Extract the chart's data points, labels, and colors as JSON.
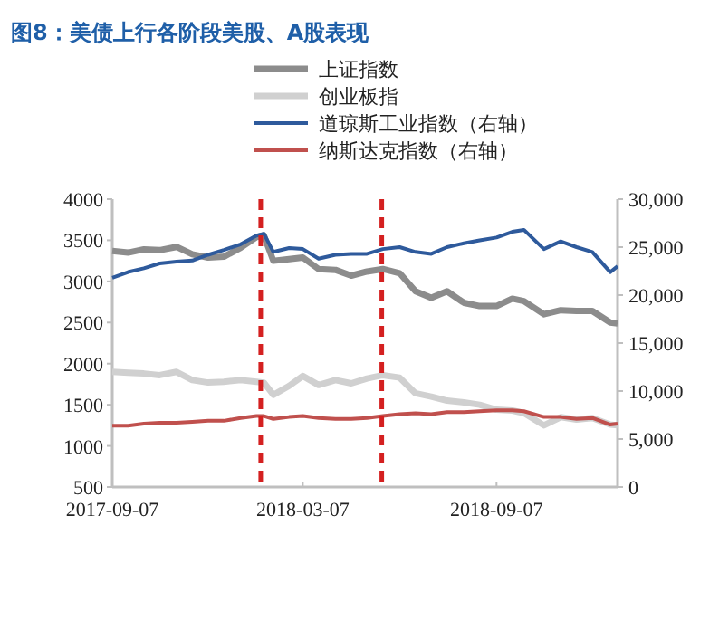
{
  "chart_data": {
    "type": "line",
    "title": "图8：美债上行各阶段美股、A股表现",
    "x": [
      "2017-09-07",
      "2017-09-22",
      "2017-10-07",
      "2017-10-22",
      "2017-11-07",
      "2017-11-22",
      "2017-12-07",
      "2017-12-22",
      "2018-01-07",
      "2018-01-22",
      "2018-01-29",
      "2018-02-07",
      "2018-02-22",
      "2018-03-07",
      "2018-03-22",
      "2018-04-07",
      "2018-04-22",
      "2018-05-07",
      "2018-05-22",
      "2018-06-07",
      "2018-06-22",
      "2018-07-07",
      "2018-07-22",
      "2018-08-07",
      "2018-08-22",
      "2018-09-07",
      "2018-09-22",
      "2018-10-03",
      "2018-10-22",
      "2018-11-07",
      "2018-11-22",
      "2018-12-07",
      "2018-12-24",
      "2018-12-31"
    ],
    "series": [
      {
        "name": "上证指数",
        "color": "#8c8c8c",
        "values": [
          3370,
          3350,
          3390,
          3380,
          3420,
          3330,
          3290,
          3300,
          3410,
          3540,
          3560,
          3250,
          3270,
          3290,
          3150,
          3140,
          3070,
          3120,
          3150,
          3100,
          2880,
          2800,
          2880,
          2740,
          2700,
          2700,
          2790,
          2760,
          2600,
          2650,
          2640,
          2640,
          2500,
          2490
        ]
      },
      {
        "name": "创业板指",
        "color": "#d0d0d0",
        "values": [
          1900,
          1890,
          1880,
          1860,
          1900,
          1800,
          1770,
          1780,
          1800,
          1780,
          1770,
          1620,
          1730,
          1850,
          1740,
          1800,
          1760,
          1820,
          1860,
          1830,
          1640,
          1600,
          1550,
          1530,
          1500,
          1440,
          1430,
          1400,
          1250,
          1350,
          1320,
          1340,
          1260,
          1250
        ]
      },
      {
        "name": "道琼斯工业指数（右轴）",
        "color": "#2e5a9c",
        "axis": "y2",
        "values": [
          21800,
          22400,
          22800,
          23300,
          23500,
          23600,
          24200,
          24700,
          25300,
          26200,
          26400,
          24500,
          24900,
          24800,
          23800,
          24200,
          24300,
          24300,
          24800,
          25000,
          24500,
          24300,
          25000,
          25400,
          25700,
          26000,
          26600,
          26800,
          24800,
          25600,
          25000,
          24500,
          22400,
          23000
        ]
      },
      {
        "name": "纳斯达克指数（右轴）",
        "color": "#c0504d",
        "axis": "y2",
        "values": [
          6400,
          6400,
          6600,
          6700,
          6700,
          6800,
          6900,
          6900,
          7200,
          7400,
          7400,
          7100,
          7300,
          7400,
          7200,
          7100,
          7100,
          7200,
          7400,
          7600,
          7700,
          7600,
          7800,
          7800,
          7900,
          8000,
          8000,
          7900,
          7300,
          7300,
          7100,
          7200,
          6500,
          6600
        ]
      }
    ],
    "xlim": [
      "2017-09-07",
      "2018-12-31"
    ],
    "xticks": [
      "2017-09-07",
      "2018-03-07",
      "2018-09-07"
    ],
    "ylim": [
      500,
      4000
    ],
    "yticks": [
      500,
      1000,
      1500,
      2000,
      2500,
      3000,
      3500,
      4000
    ],
    "y2lim": [
      0,
      30000
    ],
    "y2ticks": [
      {
        "value": 0,
        "label": "0"
      },
      {
        "value": 5000,
        "label": "5,000"
      },
      {
        "value": 10000,
        "label": "10,000"
      },
      {
        "value": 15000,
        "label": "15,000"
      },
      {
        "value": 20000,
        "label": "20,000"
      },
      {
        "value": 25000,
        "label": "25,000"
      },
      {
        "value": 30000,
        "label": "30,000"
      }
    ],
    "ref_lines": [
      {
        "axis": "x",
        "value": "2018-01-26",
        "color": "#d42020",
        "line_style": "dashed"
      },
      {
        "axis": "x",
        "value": "2018-05-21",
        "color": "#d42020",
        "line_style": "dashed"
      }
    ],
    "legend": "top",
    "grid": false
  }
}
